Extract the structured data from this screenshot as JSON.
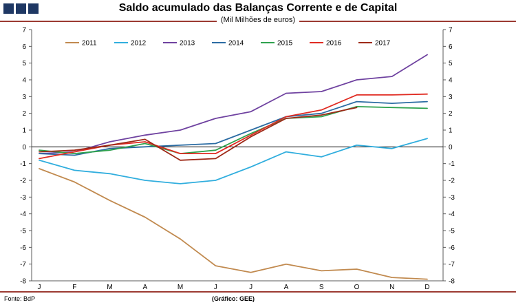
{
  "header": {
    "title": "Saldo acumulado das Balanças Corrente e de Capital",
    "subtitle": "(Mil Milhões de euros)"
  },
  "footer": {
    "source": "Fonte: BdP",
    "credit": "(Gráfico: GEE)"
  },
  "colors": {
    "accent_rule": "#9C3A32",
    "logo_square": "#1F3864",
    "axis": "#595959",
    "zero_line": "#000000"
  },
  "chart_data": {
    "type": "line",
    "title": "Saldo acumulado das Balanças Corrente e de Capital",
    "subtitle": "(Mil Milhões de euros)",
    "categories": [
      "J",
      "F",
      "M",
      "A",
      "M",
      "J",
      "J",
      "A",
      "S",
      "O",
      "N",
      "D"
    ],
    "xlabel": "",
    "ylabel": "",
    "ylim": [
      -8,
      7
    ],
    "ytick_step": 1,
    "grid": false,
    "legend_position": "top",
    "series": [
      {
        "name": "2011",
        "color": "#C18A4F",
        "values": [
          -1.3,
          -2.1,
          -3.2,
          -4.2,
          -5.5,
          -7.1,
          -7.5,
          -7.0,
          -7.4,
          -7.3,
          -7.8,
          -7.9
        ]
      },
      {
        "name": "2012",
        "color": "#31AEDE",
        "values": [
          -0.8,
          -1.4,
          -1.6,
          -2.0,
          -2.2,
          -2.0,
          -1.2,
          -0.3,
          -0.6,
          0.1,
          -0.1,
          0.5
        ]
      },
      {
        "name": "2013",
        "color": "#6F42A0",
        "values": [
          -0.4,
          -0.3,
          0.3,
          0.7,
          1.0,
          1.7,
          2.1,
          3.2,
          3.3,
          4.0,
          4.2,
          5.5
        ]
      },
      {
        "name": "2014",
        "color": "#2B6CA3",
        "values": [
          -0.4,
          -0.5,
          -0.1,
          0.0,
          0.1,
          0.2,
          1.0,
          1.8,
          2.0,
          2.7,
          2.6,
          2.7
        ]
      },
      {
        "name": "2015",
        "color": "#2FA24E",
        "values": [
          -0.2,
          -0.4,
          -0.2,
          0.2,
          -0.4,
          -0.2,
          0.8,
          1.7,
          1.8,
          2.4,
          2.35,
          2.3
        ]
      },
      {
        "name": "2016",
        "color": "#E02B22",
        "values": [
          -0.7,
          -0.3,
          0.1,
          0.3,
          -0.4,
          -0.4,
          0.7,
          1.8,
          2.2,
          3.1,
          3.1,
          3.15
        ]
      },
      {
        "name": "2017",
        "color": "#9E2A18",
        "values": [
          -0.3,
          -0.2,
          0.1,
          0.45,
          -0.8,
          -0.7,
          0.6,
          1.7,
          1.9,
          2.35,
          null,
          null
        ]
      }
    ]
  }
}
